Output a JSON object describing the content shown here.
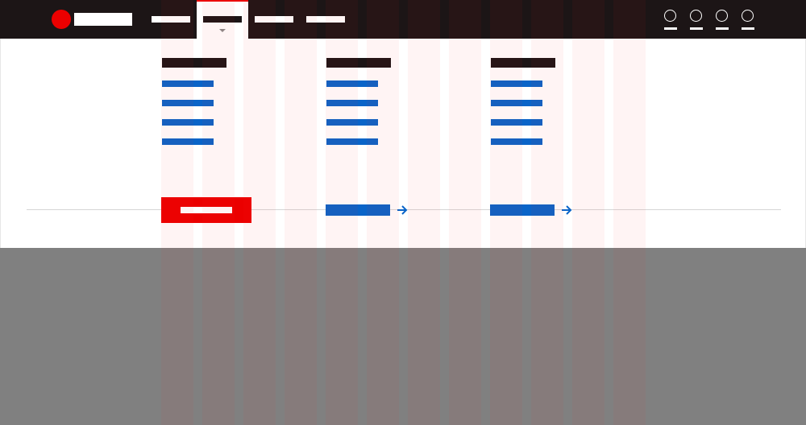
{
  "header": {
    "logo": {
      "icon": "brand-dot-icon",
      "brand_color": "#eb0000"
    },
    "nav": [
      {
        "id": "nav-item-1",
        "active": false
      },
      {
        "id": "nav-item-2",
        "active": true,
        "icon": "caret-down-icon"
      },
      {
        "id": "nav-item-3",
        "active": false
      },
      {
        "id": "nav-item-4",
        "active": false
      }
    ],
    "tools": [
      {
        "icon": "circle-icon"
      },
      {
        "icon": "circle-icon"
      },
      {
        "icon": "circle-icon"
      },
      {
        "icon": "circle-icon"
      }
    ]
  },
  "menu": {
    "columns": [
      {
        "heading": "",
        "links": [
          "",
          "",
          "",
          ""
        ],
        "more_icon": ""
      },
      {
        "heading": "",
        "links": [
          "",
          "",
          "",
          ""
        ],
        "more_icon": "arrow-right-icon"
      },
      {
        "heading": "",
        "links": [
          "",
          "",
          "",
          ""
        ],
        "more_icon": "arrow-right-icon"
      }
    ],
    "cta": {
      "label": ""
    }
  },
  "colors": {
    "topbar": "#1c1516",
    "accent": "#eb0000",
    "link": "#0a64c8",
    "panel": "#ffffff",
    "backdrop": "#808080"
  }
}
